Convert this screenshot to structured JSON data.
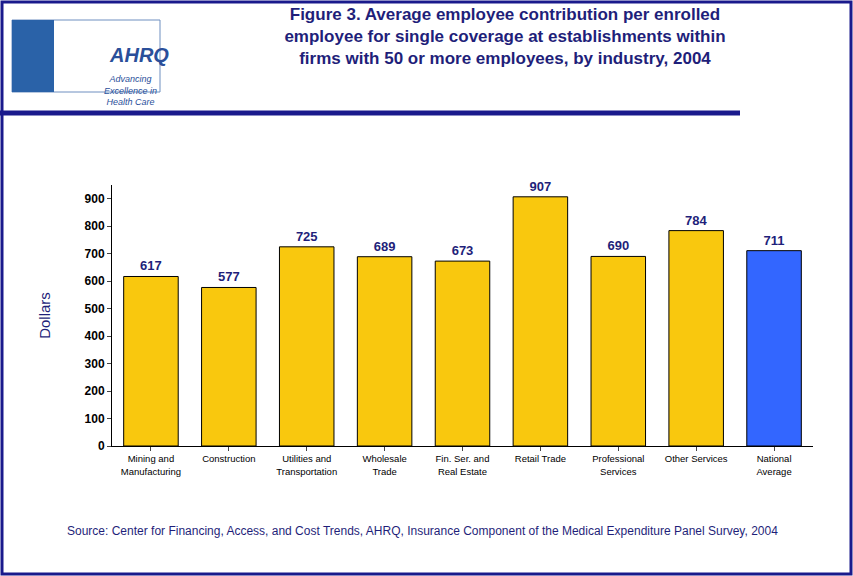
{
  "chart_data": {
    "type": "bar",
    "title": "Figure 3. Average employee contribution per enrolled\nemployee for single coverage at establishments within\nfirms with 50 or more employees, by industry, 2004",
    "y_label": "Dollars",
    "categories": [
      "Mining and\nManufacturing",
      "Construction",
      "Utilities and\nTransportation",
      "Wholesale\nTrade",
      "Fin. Ser. and\nReal Estate",
      "Retail Trade",
      "Professional\nServices",
      "Other Services",
      "National\nAverage"
    ],
    "values": [
      617,
      577,
      725,
      689,
      673,
      907,
      690,
      784,
      711
    ],
    "colors": [
      "#f9c80e",
      "#f9c80e",
      "#f9c80e",
      "#f9c80e",
      "#f9c80e",
      "#f9c80e",
      "#f9c80e",
      "#f9c80e",
      "#3366ff"
    ],
    "ylim": [
      0,
      950
    ],
    "yticks": [
      0,
      100,
      200,
      300,
      400,
      500,
      600,
      700,
      800,
      900
    ],
    "grid": false,
    "data_labels": true,
    "annotations": [
      "AHRQ",
      "Advancing\nExcellence in\nHealth Care"
    ],
    "source": "Source: Center for Financing, Access, and Cost Trends, AHRQ, Insurance Component of the Medical Expenditure Panel Survey, 2004"
  }
}
